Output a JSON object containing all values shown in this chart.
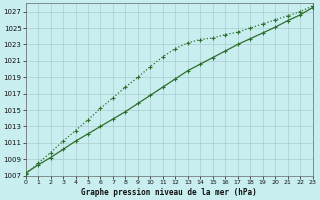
{
  "title": "Graphe pression niveau de la mer (hPa)",
  "bg_color": "#c8eef0",
  "grid_color": "#aaccce",
  "line_color": "#2d6e2d",
  "ylim": [
    1007,
    1028
  ],
  "xlim": [
    0,
    23
  ],
  "yticks": [
    1007,
    1009,
    1011,
    1013,
    1015,
    1017,
    1019,
    1021,
    1023,
    1025,
    1027
  ],
  "xticks": [
    0,
    1,
    2,
    3,
    4,
    5,
    6,
    7,
    8,
    9,
    10,
    11,
    12,
    13,
    14,
    15,
    16,
    17,
    18,
    19,
    20,
    21,
    22,
    23
  ],
  "x": [
    0,
    1,
    2,
    3,
    4,
    5,
    6,
    7,
    8,
    9,
    10,
    11,
    12,
    13,
    14,
    15,
    16,
    17,
    18,
    19,
    20,
    21,
    22,
    23
  ],
  "y_solid": [
    1007.3,
    1008.3,
    1009.2,
    1010.2,
    1011.2,
    1012.1,
    1013.0,
    1013.9,
    1014.8,
    1015.8,
    1016.8,
    1017.8,
    1018.8,
    1019.8,
    1020.6,
    1021.4,
    1022.2,
    1023.0,
    1023.7,
    1024.4,
    1025.1,
    1025.9,
    1026.6,
    1027.5
  ],
  "y_dotted": [
    1007.2,
    1008.5,
    1009.8,
    1011.2,
    1012.5,
    1013.8,
    1015.2,
    1016.5,
    1017.8,
    1019.0,
    1020.3,
    1021.5,
    1022.5,
    1023.2,
    1023.6,
    1023.8,
    1024.2,
    1024.5,
    1025.0,
    1025.5,
    1026.0,
    1026.5,
    1027.0,
    1027.7
  ]
}
